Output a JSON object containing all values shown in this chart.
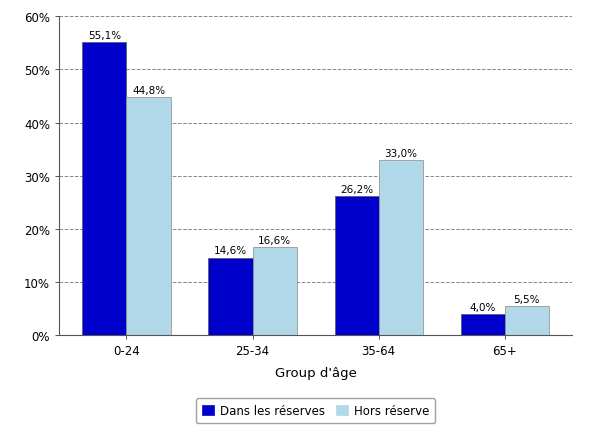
{
  "categories": [
    "0-24",
    "25-34",
    "35-64",
    "65+"
  ],
  "series": [
    {
      "name": "Dans les réserves",
      "values": [
        55.1,
        14.6,
        26.2,
        4.0
      ],
      "color": "#0000CD",
      "labels": [
        "55,1%",
        "14,6%",
        "26,2%",
        "4,0%"
      ]
    },
    {
      "name": "Hors réserve",
      "values": [
        44.8,
        16.6,
        33.0,
        5.5
      ],
      "color": "#B0D8E8",
      "labels": [
        "44,8%",
        "16,6%",
        "33,0%",
        "5,5%"
      ]
    }
  ],
  "xlabel": "Group d'âge",
  "ylim": [
    0,
    60
  ],
  "yticks": [
    0,
    10,
    20,
    30,
    40,
    50,
    60
  ],
  "ytick_labels": [
    "0%",
    "10%",
    "20%",
    "30%",
    "40%",
    "50%",
    "60%"
  ],
  "background_color": "#FFFFFF",
  "grid_color": "#888888",
  "bar_width": 0.35,
  "figsize": [
    5.9,
    4.31
  ],
  "dpi": 100,
  "label_fontsize": 7.5,
  "tick_fontsize": 8.5,
  "xlabel_fontsize": 9.5,
  "legend_fontsize": 8.5
}
